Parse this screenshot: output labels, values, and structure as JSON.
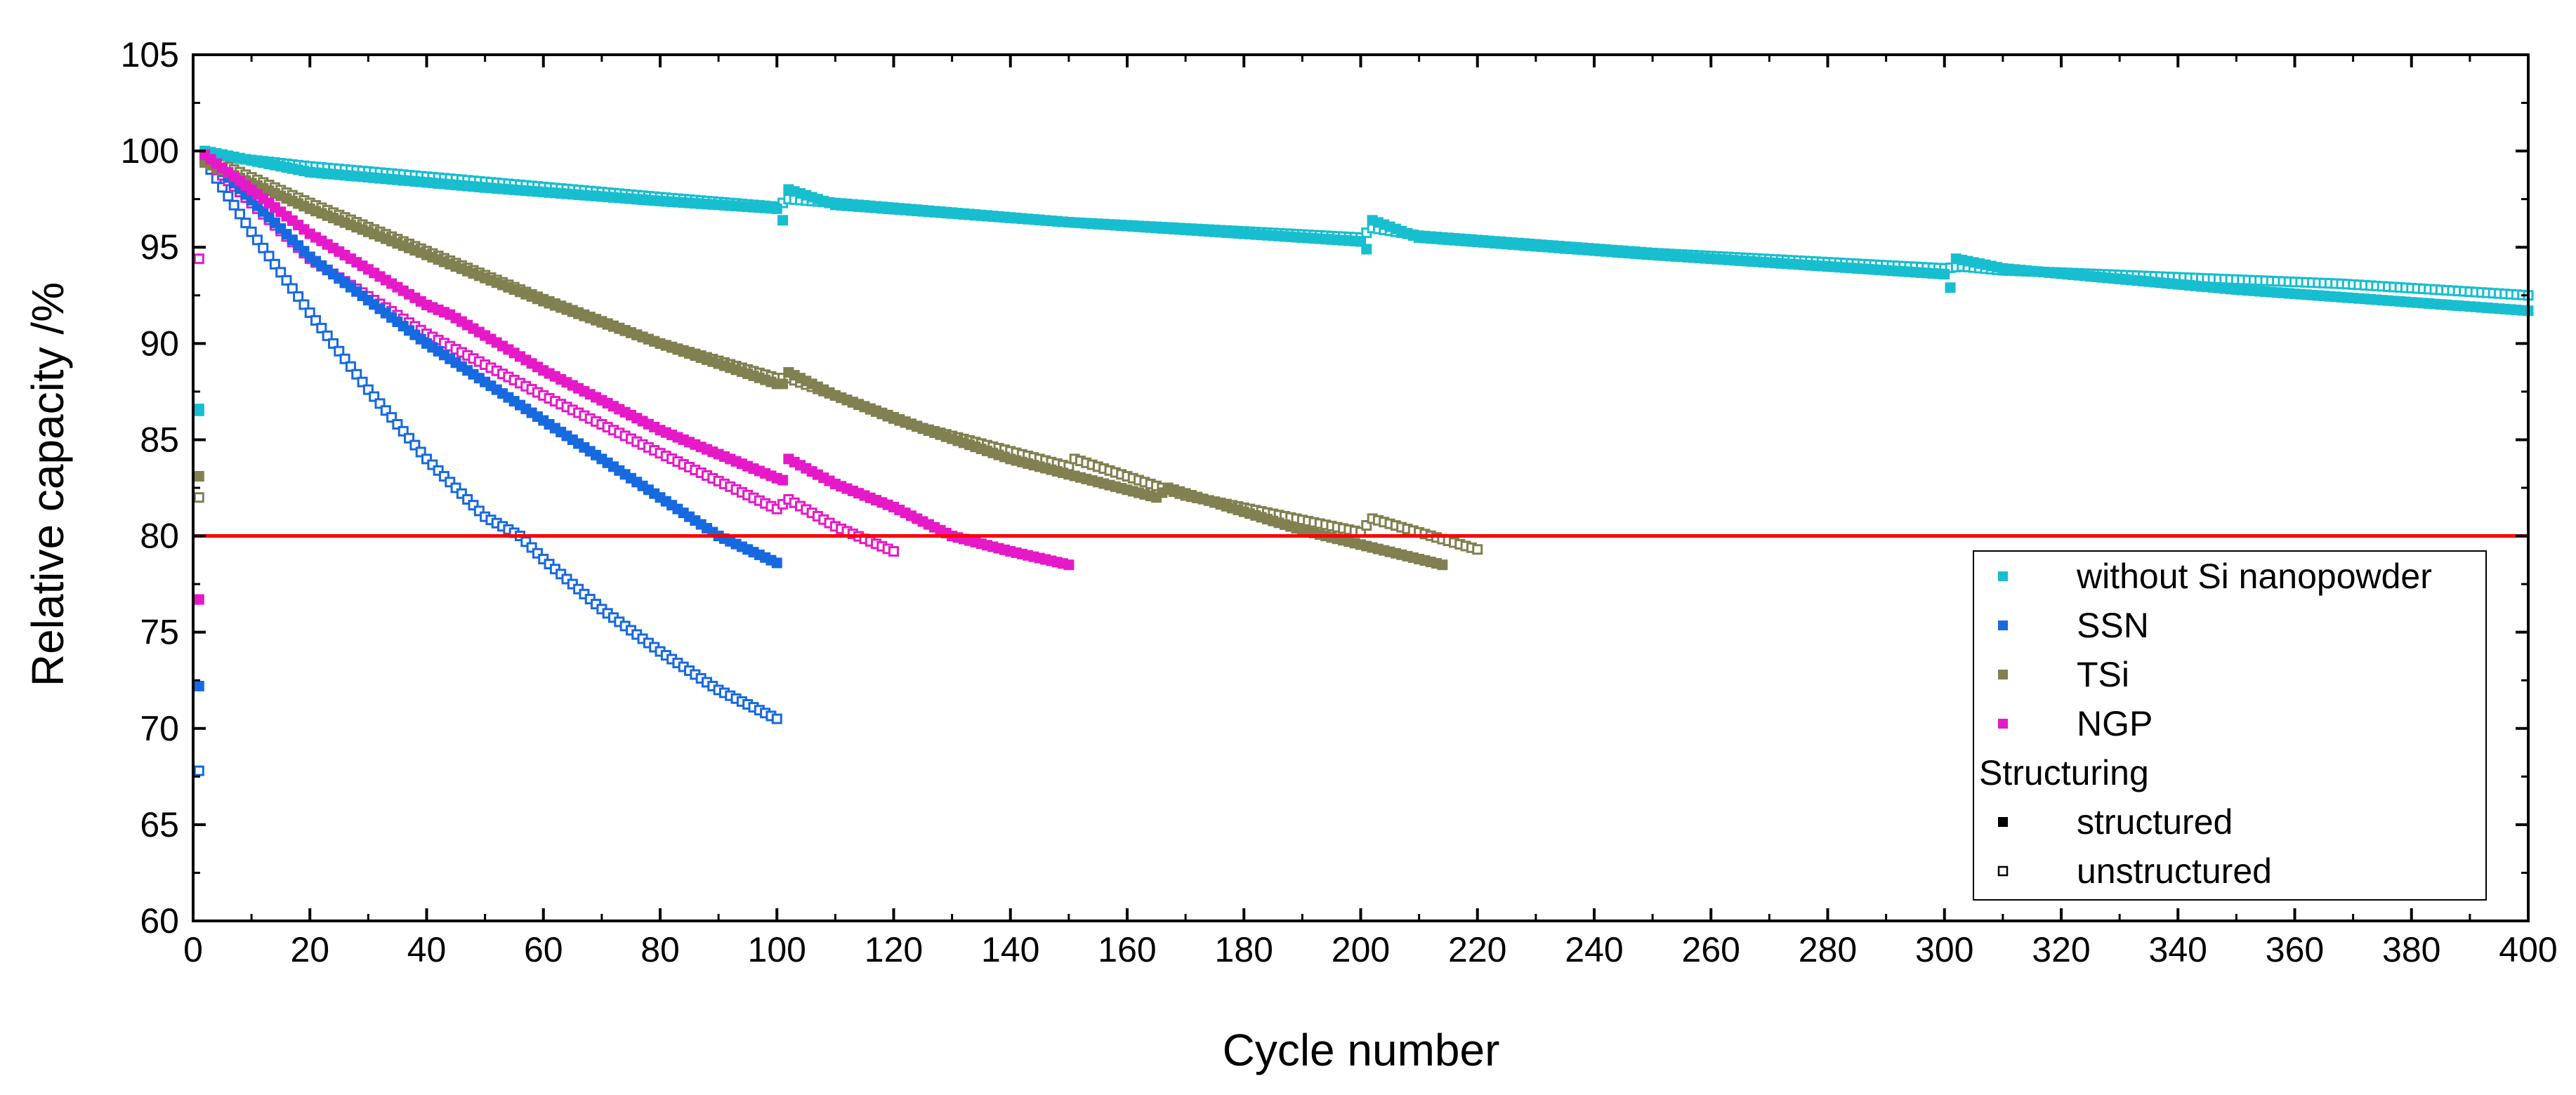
{
  "chart_data": {
    "type": "scatter",
    "title": "",
    "xlabel": "Cycle number",
    "ylabel": "Relative capacity /%",
    "xlim": [
      0,
      400
    ],
    "ylim": [
      60,
      105
    ],
    "xticks": [
      0,
      20,
      40,
      60,
      80,
      100,
      120,
      140,
      160,
      180,
      200,
      220,
      240,
      260,
      280,
      300,
      320,
      340,
      360,
      380,
      400
    ],
    "yticks": [
      60,
      65,
      70,
      75,
      80,
      85,
      90,
      95,
      100,
      105
    ],
    "grid": false,
    "reference_line": {
      "y": 80,
      "color": "#ff0000"
    },
    "legend": {
      "placement": "bottom-right",
      "materials_title": "",
      "structuring_title": "Structuring",
      "structured_label": "structured",
      "unstructured_label": "unstructured"
    },
    "series": [
      {
        "name": "without Si nanopowder",
        "color": "#17becf",
        "structured": {
          "initial": 86.6,
          "points": [
            [
              2,
              100
            ],
            [
              20,
              98.9
            ],
            [
              50,
              98.1
            ],
            [
              80,
              97.4
            ],
            [
              100,
              97.0
            ],
            [
              101,
              96.4
            ],
            [
              102,
              98.0
            ],
            [
              110,
              97.2
            ],
            [
              150,
              96.3
            ],
            [
              200,
              95.3
            ],
            [
              201,
              94.9
            ],
            [
              202,
              96.4
            ],
            [
              210,
              95.5
            ],
            [
              250,
              94.6
            ],
            [
              300,
              93.6
            ],
            [
              301,
              92.9
            ],
            [
              302,
              94.4
            ],
            [
              310,
              93.9
            ],
            [
              350,
              92.8
            ],
            [
              400,
              91.7
            ]
          ]
        },
        "unstructured": {
          "initial": 86.5,
          "points": [
            [
              2,
              99.8
            ],
            [
              20,
              99.2
            ],
            [
              50,
              98.4
            ],
            [
              80,
              97.6
            ],
            [
              100,
              97.1
            ],
            [
              102,
              97.5
            ],
            [
              110,
              97.3
            ],
            [
              150,
              96.3
            ],
            [
              200,
              95.5
            ],
            [
              202,
              96.0
            ],
            [
              210,
              95.6
            ],
            [
              250,
              94.7
            ],
            [
              300,
              93.9
            ],
            [
              303,
              94.0
            ],
            [
              310,
              93.8
            ],
            [
              368,
              93.1
            ],
            [
              400,
              92.5
            ]
          ]
        }
      },
      {
        "name": "SSN",
        "color": "#1769e0",
        "structured": {
          "initial": 72.2,
          "points": [
            [
              2,
              99.8
            ],
            [
              20,
              94.5
            ],
            [
              40,
              90.0
            ],
            [
              60,
              86.0
            ],
            [
              80,
              82.0
            ],
            [
              90,
              80.0
            ],
            [
              100,
              78.6
            ]
          ]
        },
        "unstructured": {
          "initial": 67.8,
          "points": [
            [
              2,
              99.5
            ],
            [
              10,
              95.8
            ],
            [
              20,
              91.6
            ],
            [
              30,
              87.6
            ],
            [
              40,
              84.0
            ],
            [
              50,
              81.0
            ],
            [
              56,
              80.0
            ],
            [
              60,
              78.8
            ],
            [
              70,
              76.2
            ],
            [
              80,
              74.0
            ],
            [
              90,
              72.0
            ],
            [
              100,
              70.5
            ]
          ]
        }
      },
      {
        "name": "TSi",
        "color": "#808050",
        "structured": {
          "initial": 83.1,
          "points": [
            [
              2,
              99.4
            ],
            [
              20,
              97.0
            ],
            [
              40,
              94.6
            ],
            [
              60,
              92.2
            ],
            [
              80,
              90.0
            ],
            [
              100,
              87.9
            ],
            [
              101,
              87.9
            ],
            [
              102,
              88.5
            ],
            [
              110,
              87.3
            ],
            [
              120,
              86.1
            ],
            [
              140,
              84.0
            ],
            [
              165,
              82.0
            ],
            [
              167,
              82.5
            ],
            [
              190,
              80.3
            ],
            [
              214,
              78.5
            ]
          ]
        },
        "unstructured": {
          "initial": 82.0,
          "points": [
            [
              2,
              99.7
            ],
            [
              20,
              97.3
            ],
            [
              40,
              94.8
            ],
            [
              60,
              92.3
            ],
            [
              80,
              90.0
            ],
            [
              100,
              88.2
            ],
            [
              102,
              88.2
            ],
            [
              110,
              87.3
            ],
            [
              125,
              85.6
            ],
            [
              150,
              83.6
            ],
            [
              151,
              84.0
            ],
            [
              170,
              82.1
            ],
            [
              200,
              80.2
            ],
            [
              202,
              80.9
            ],
            [
              220,
              79.3
            ]
          ]
        }
      },
      {
        "name": "NGP",
        "color": "#e619c8",
        "structured": {
          "initial": 76.7,
          "points": [
            [
              2,
              99.8
            ],
            [
              20,
              95.7
            ],
            [
              40,
              92.0
            ],
            [
              44,
              91.5
            ],
            [
              60,
              88.6
            ],
            [
              80,
              85.5
            ],
            [
              100,
              83.0
            ],
            [
              101,
              82.9
            ],
            [
              102,
              84.0
            ],
            [
              110,
              82.7
            ],
            [
              120,
              81.5
            ],
            [
              130,
              80.0
            ],
            [
              140,
              79.2
            ],
            [
              150,
              78.5
            ]
          ]
        },
        "unstructured": {
          "initial": 94.4,
          "points": [
            [
              2,
              99.6
            ],
            [
              20,
              94.4
            ],
            [
              40,
              90.5
            ],
            [
              60,
              87.3
            ],
            [
              80,
              84.3
            ],
            [
              100,
              81.4
            ],
            [
              102,
              81.9
            ],
            [
              110,
              80.5
            ],
            [
              120,
              79.2
            ]
          ]
        }
      }
    ]
  }
}
